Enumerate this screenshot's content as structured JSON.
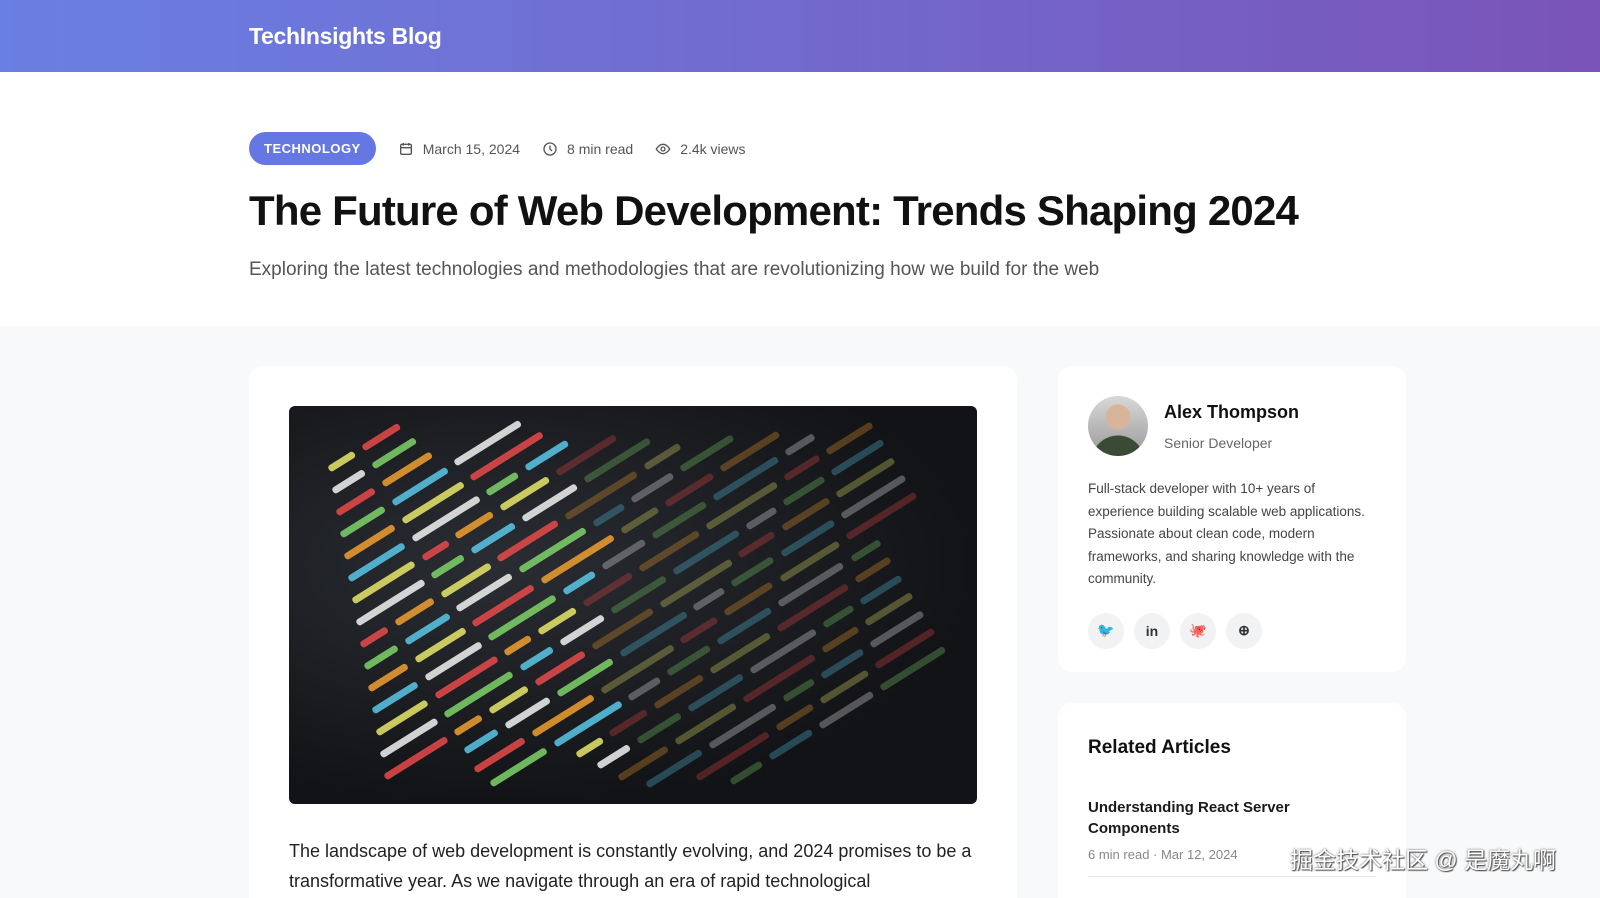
{
  "header": {
    "brand": "TechInsights Blog"
  },
  "article": {
    "category": "TECHNOLOGY",
    "date": "March 15, 2024",
    "read_time": "8 min read",
    "views": "2.4k views",
    "title": "The Future of Web Development: Trends Shaping 2024",
    "subtitle": "Exploring the latest technologies and methodologies that are revolutionizing how we build for the web",
    "body": "The landscape of web development is constantly evolving, and 2024 promises to be a transformative year. As we navigate through an era of rapid technological"
  },
  "author": {
    "name": "Alex Thompson",
    "role": "Senior Developer",
    "bio": "Full-stack developer with 10+ years of experience building scalable web applications. Passionate about clean code, modern frameworks, and sharing knowledge with the community.",
    "socials": [
      {
        "icon": "twitter-icon",
        "glyph": "🐦"
      },
      {
        "icon": "linkedin-icon",
        "glyph": "in"
      },
      {
        "icon": "github-icon",
        "glyph": "🐙"
      },
      {
        "icon": "globe-icon",
        "glyph": "⊕"
      }
    ]
  },
  "related": {
    "heading": "Related Articles",
    "items": [
      {
        "title": "Understanding React Server Components",
        "meta": "6 min read · Mar 12, 2024"
      }
    ]
  },
  "watermark": "掘金技术社区 @ 是魔丸啊",
  "colors": {
    "accent": "#6577e3",
    "header_start": "#6a7fe3",
    "header_end": "#7a54b8"
  }
}
